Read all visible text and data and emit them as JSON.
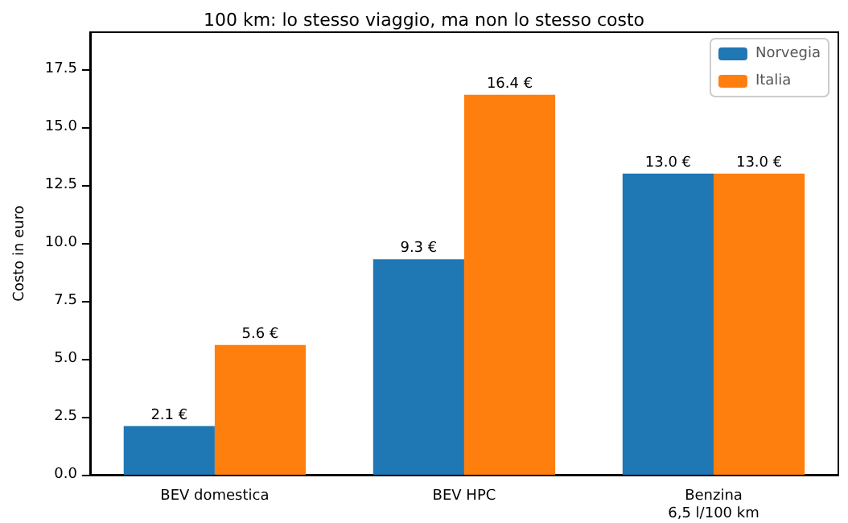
{
  "chart_data": {
    "type": "bar",
    "title": "100 km: lo stesso viaggio, ma non lo stesso costo",
    "ylabel": "Costo in euro",
    "categories": [
      "BEV domestica",
      "BEV HPC",
      "Benzina\n6,5 l/100 km"
    ],
    "series": [
      {
        "name": "Norvegia",
        "color": "#1f77b4",
        "values": [
          2.1,
          9.3,
          13.0
        ],
        "value_labels": [
          "2.1 €",
          "9.3 €",
          "13.0 €"
        ]
      },
      {
        "name": "Italia",
        "color": "#ff7f0e",
        "values": [
          5.6,
          16.4,
          13.0
        ],
        "value_labels": [
          "5.6 €",
          "16.4 €",
          "13.0 €"
        ]
      }
    ],
    "ylim": [
      0,
      19.1
    ],
    "yticks": [
      {
        "value": 0,
        "label": "0.0"
      },
      {
        "value": 2.5,
        "label": "2.5"
      },
      {
        "value": 5,
        "label": "5.0"
      },
      {
        "value": 7.5,
        "label": "7.5"
      },
      {
        "value": 10,
        "label": "10.0"
      },
      {
        "value": 12.5,
        "label": "12.5"
      },
      {
        "value": 15,
        "label": "15.0"
      },
      {
        "value": 17.5,
        "label": "17.5"
      }
    ],
    "grid": false,
    "legend": "top right"
  }
}
